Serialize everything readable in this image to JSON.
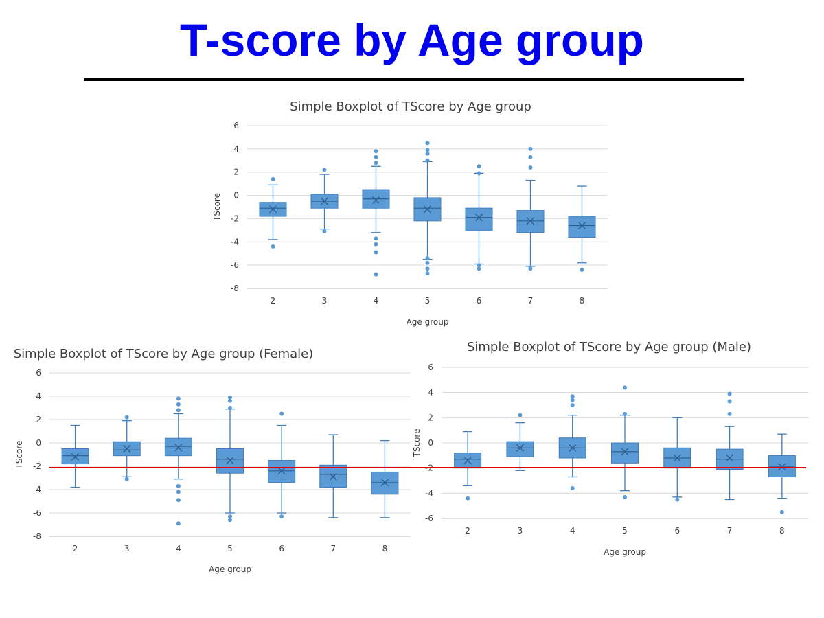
{
  "slide": {
    "title": "T-score by Age group",
    "threshold": {
      "value": -2.2,
      "color": "#e00000"
    }
  },
  "colors": {
    "box": "#5b9bd5",
    "box_stroke": "#3f7dbf",
    "grid": "#d9d9d9",
    "title_text": "#0000ee"
  },
  "chart_data": [
    {
      "type": "box",
      "title": "Simple Boxplot of TScore by Age group",
      "xlabel": "Age group",
      "ylabel": "TScore",
      "ylim": [
        -8,
        6
      ],
      "yticks": [
        6,
        4,
        2,
        0,
        -2,
        -4,
        -6,
        -8
      ],
      "categories": [
        "2",
        "3",
        "4",
        "5",
        "6",
        "7",
        "8"
      ],
      "boxes": [
        {
          "min": -3.8,
          "q1": -1.8,
          "median": -1.1,
          "q3": -0.6,
          "max": 0.9,
          "mean": -1.2,
          "outliers": [
            1.4,
            -4.4
          ]
        },
        {
          "min": -2.9,
          "q1": -1.1,
          "median": -0.5,
          "q3": 0.1,
          "max": 1.8,
          "mean": -0.5,
          "outliers": [
            2.2,
            -3.1
          ]
        },
        {
          "min": -3.2,
          "q1": -1.1,
          "median": -0.3,
          "q3": 0.5,
          "max": 2.5,
          "mean": -0.4,
          "outliers": [
            3.8,
            3.3,
            2.8,
            -3.7,
            -4.2,
            -4.9,
            -6.8
          ]
        },
        {
          "min": -5.5,
          "q1": -2.2,
          "median": -1.1,
          "q3": -0.2,
          "max": 2.9,
          "mean": -1.2,
          "outliers": [
            4.5,
            3.9,
            3.6,
            3.0,
            -5.4,
            -5.8,
            -6.3,
            -6.7
          ]
        },
        {
          "min": -5.9,
          "q1": -3.0,
          "median": -1.9,
          "q3": -1.1,
          "max": 1.9,
          "mean": -1.9,
          "outliers": [
            2.5,
            1.9,
            -6.0,
            -6.3
          ]
        },
        {
          "min": -6.1,
          "q1": -3.2,
          "median": -2.2,
          "q3": -1.3,
          "max": 1.3,
          "mean": -2.2,
          "outliers": [
            4.0,
            3.3,
            2.4,
            -6.3
          ]
        },
        {
          "min": -5.8,
          "q1": -3.6,
          "median": -2.6,
          "q3": -1.8,
          "max": 0.8,
          "mean": -2.6,
          "outliers": [
            -6.4
          ]
        }
      ]
    },
    {
      "type": "box",
      "title": "Simple Boxplot of TScore by Age group (Female)",
      "xlabel": "Age group",
      "ylabel": "TScore",
      "ylim": [
        -8,
        6
      ],
      "yticks": [
        6,
        4,
        2,
        0,
        -2,
        -4,
        -6,
        -8
      ],
      "categories": [
        "2",
        "3",
        "4",
        "5",
        "6",
        "7",
        "8"
      ],
      "boxes": [
        {
          "min": -3.8,
          "q1": -1.8,
          "median": -1.1,
          "q3": -0.5,
          "max": 1.5,
          "mean": -1.2,
          "outliers": []
        },
        {
          "min": -2.9,
          "q1": -1.1,
          "median": -0.6,
          "q3": 0.1,
          "max": 1.9,
          "mean": -0.5,
          "outliers": [
            2.2,
            -3.1
          ]
        },
        {
          "min": -3.1,
          "q1": -1.1,
          "median": -0.3,
          "q3": 0.4,
          "max": 2.5,
          "mean": -0.4,
          "outliers": [
            3.8,
            3.3,
            2.8,
            -3.7,
            -4.2,
            -4.9,
            -6.9
          ]
        },
        {
          "min": -6.0,
          "q1": -2.6,
          "median": -1.4,
          "q3": -0.5,
          "max": 2.9,
          "mean": -1.5,
          "outliers": [
            3.9,
            3.6,
            3.0,
            -6.3,
            -6.6
          ]
        },
        {
          "min": -6.0,
          "q1": -3.4,
          "median": -2.4,
          "q3": -1.5,
          "max": 1.5,
          "mean": -2.4,
          "outliers": [
            2.5,
            -6.3
          ]
        },
        {
          "min": -6.4,
          "q1": -3.8,
          "median": -2.7,
          "q3": -1.9,
          "max": 0.7,
          "mean": -2.9,
          "outliers": []
        },
        {
          "min": -6.4,
          "q1": -4.4,
          "median": -3.4,
          "q3": -2.5,
          "max": 0.2,
          "mean": -3.4,
          "outliers": []
        }
      ]
    },
    {
      "type": "box",
      "title": "Simple Boxplot of TScore by Age group (Male)",
      "xlabel": "Age group",
      "ylabel": "TScore",
      "ylim": [
        -6,
        6
      ],
      "yticks": [
        6,
        4,
        2,
        0,
        -2,
        -4,
        -6
      ],
      "categories": [
        "2",
        "3",
        "4",
        "5",
        "6",
        "7",
        "8"
      ],
      "boxes": [
        {
          "min": -3.4,
          "q1": -2.0,
          "median": -1.3,
          "q3": -0.8,
          "max": 0.9,
          "mean": -1.4,
          "outliers": [
            -4.4
          ]
        },
        {
          "min": -2.2,
          "q1": -1.1,
          "median": -0.4,
          "q3": 0.1,
          "max": 1.6,
          "mean": -0.4,
          "outliers": [
            2.2
          ]
        },
        {
          "min": -2.7,
          "q1": -1.2,
          "median": -0.4,
          "q3": 0.4,
          "max": 2.2,
          "mean": -0.4,
          "outliers": [
            3.7,
            3.4,
            3.0,
            -3.6
          ]
        },
        {
          "min": -3.8,
          "q1": -1.6,
          "median": -0.7,
          "q3": 0.0,
          "max": 2.2,
          "mean": -0.7,
          "outliers": [
            4.4,
            2.3,
            -4.3
          ]
        },
        {
          "min": -4.3,
          "q1": -2.0,
          "median": -1.2,
          "q3": -0.4,
          "max": 2.0,
          "mean": -1.2,
          "outliers": [
            -4.5
          ]
        },
        {
          "min": -4.5,
          "q1": -2.1,
          "median": -1.3,
          "q3": -0.5,
          "max": 1.3,
          "mean": -1.2,
          "outliers": [
            3.9,
            3.3,
            2.3
          ]
        },
        {
          "min": -4.4,
          "q1": -2.7,
          "median": -1.9,
          "q3": -1.0,
          "max": 0.7,
          "mean": -1.9,
          "outliers": [
            -5.5
          ]
        }
      ]
    }
  ]
}
